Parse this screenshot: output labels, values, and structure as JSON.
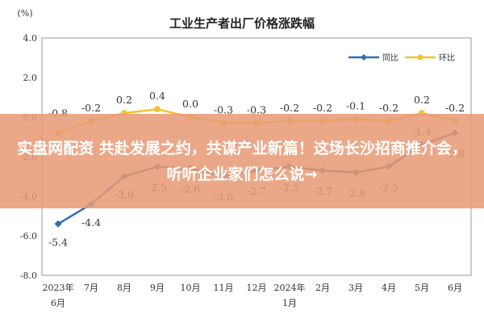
{
  "chart_data": {
    "type": "line",
    "title": "工业生产者出厂价格涨跌幅",
    "unit_label": "(%)",
    "categories": [
      [
        "2023年",
        "6月"
      ],
      [
        "7月"
      ],
      [
        "8月"
      ],
      [
        "9月"
      ],
      [
        "10月"
      ],
      [
        "11月"
      ],
      [
        "12月"
      ],
      [
        "2024年",
        "1月"
      ],
      [
        "2月"
      ],
      [
        "3月"
      ],
      [
        "4月"
      ],
      [
        "5月"
      ],
      [
        "6月"
      ]
    ],
    "ylim": [
      -8.0,
      4.0
    ],
    "yticks": [
      "4.0",
      "2.0",
      "0.0",
      "-2.0",
      "-4.0",
      "-6.0",
      "-8.0"
    ],
    "ytick_values": [
      4,
      2,
      0,
      -2,
      -4,
      -6,
      -8
    ],
    "grid": false,
    "legend_position": "top-right",
    "series": [
      {
        "name": "同比",
        "color": "#2e6db4",
        "marker": "diamond",
        "values": [
          -5.4,
          -4.4,
          -3.0,
          -2.5,
          -2.6,
          -3.0,
          -2.7,
          -2.5,
          -2.7,
          -2.8,
          -2.5,
          -1.4,
          -0.8
        ],
        "labels": [
          "-5.4",
          "-4.4",
          "-3.0",
          "-2.5",
          "-2.6",
          "-3.0",
          "-2.7",
          "-2.5",
          "-2.7",
          "-2.8",
          "-2.5",
          "-1.4",
          "-0.8"
        ]
      },
      {
        "name": "环比",
        "color": "#f1c232",
        "marker": "circle",
        "values": [
          -0.8,
          -0.2,
          0.2,
          0.4,
          0.0,
          -0.3,
          -0.3,
          -0.2,
          -0.2,
          -0.1,
          -0.2,
          0.2,
          -0.2
        ],
        "labels": [
          "-0.8",
          "-0.2",
          "0.2",
          "0.4",
          "0.0",
          "-0.3",
          "-0.3",
          "-0.2",
          "-0.2",
          "-0.1",
          "-0.2",
          "0.2",
          "-0.2"
        ]
      }
    ]
  },
  "banner": {
    "text": "实盘网配资 共赴发展之约，共谋产业新篇！这场长沙招商推介会，听听企业家们怎么说→",
    "background": "#e89a74"
  }
}
